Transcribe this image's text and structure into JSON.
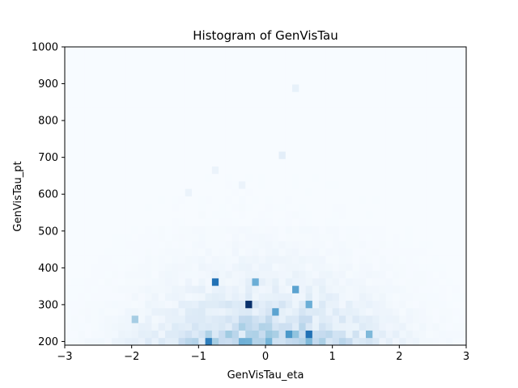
{
  "chart_data": {
    "type": "heatmap",
    "title": "Histogram of GenVisTau",
    "xlabel": "GenVisTau_eta",
    "ylabel": "GenVisTau_pt",
    "xlim": [
      -3,
      3
    ],
    "ylim": [
      190,
      1000
    ],
    "x_ticks": [
      -3,
      -2,
      -1,
      0,
      1,
      2,
      3
    ],
    "x_tick_labels": [
      "−3",
      "−2",
      "−1",
      "0",
      "1",
      "2",
      "3"
    ],
    "y_ticks": [
      200,
      300,
      400,
      500,
      600,
      700,
      800,
      900,
      1000
    ],
    "y_tick_labels": [
      "200",
      "300",
      "400",
      "500",
      "600",
      "700",
      "800",
      "900",
      "1000"
    ],
    "grid": false,
    "legend": "none",
    "colormap": "Blues",
    "colors": {
      "min": "#f7fbff",
      "max": "#08306b"
    },
    "bins": {
      "nx": 60,
      "ny": 40,
      "x_range": [
        -3,
        3
      ],
      "y_range": [
        190,
        1000
      ]
    },
    "hotspots": [
      {
        "eta": -0.2,
        "pt": 305,
        "weight": 1.0
      },
      {
        "eta": -0.7,
        "pt": 362,
        "weight": 0.75
      },
      {
        "eta": 0.6,
        "pt": 228,
        "weight": 0.75
      },
      {
        "eta": -0.9,
        "pt": 205,
        "weight": 0.7
      },
      {
        "eta": 0.35,
        "pt": 228,
        "weight": 0.6
      },
      {
        "eta": 0.45,
        "pt": 338,
        "weight": 0.55
      },
      {
        "eta": 0.6,
        "pt": 308,
        "weight": 0.5
      },
      {
        "eta": -0.1,
        "pt": 355,
        "weight": 0.5
      },
      {
        "eta": 0.1,
        "pt": 285,
        "weight": 0.55
      },
      {
        "eta": 1.5,
        "pt": 218,
        "weight": 0.45
      },
      {
        "eta": -2.0,
        "pt": 255,
        "weight": 0.35
      },
      {
        "eta": 0.4,
        "pt": 898,
        "weight": 0.08
      },
      {
        "eta": 0.3,
        "pt": 700,
        "weight": 0.1
      },
      {
        "eta": -0.7,
        "pt": 668,
        "weight": 0.06
      },
      {
        "eta": -0.4,
        "pt": 620,
        "weight": 0.06
      },
      {
        "eta": -1.1,
        "pt": 605,
        "weight": 0.06
      }
    ]
  }
}
